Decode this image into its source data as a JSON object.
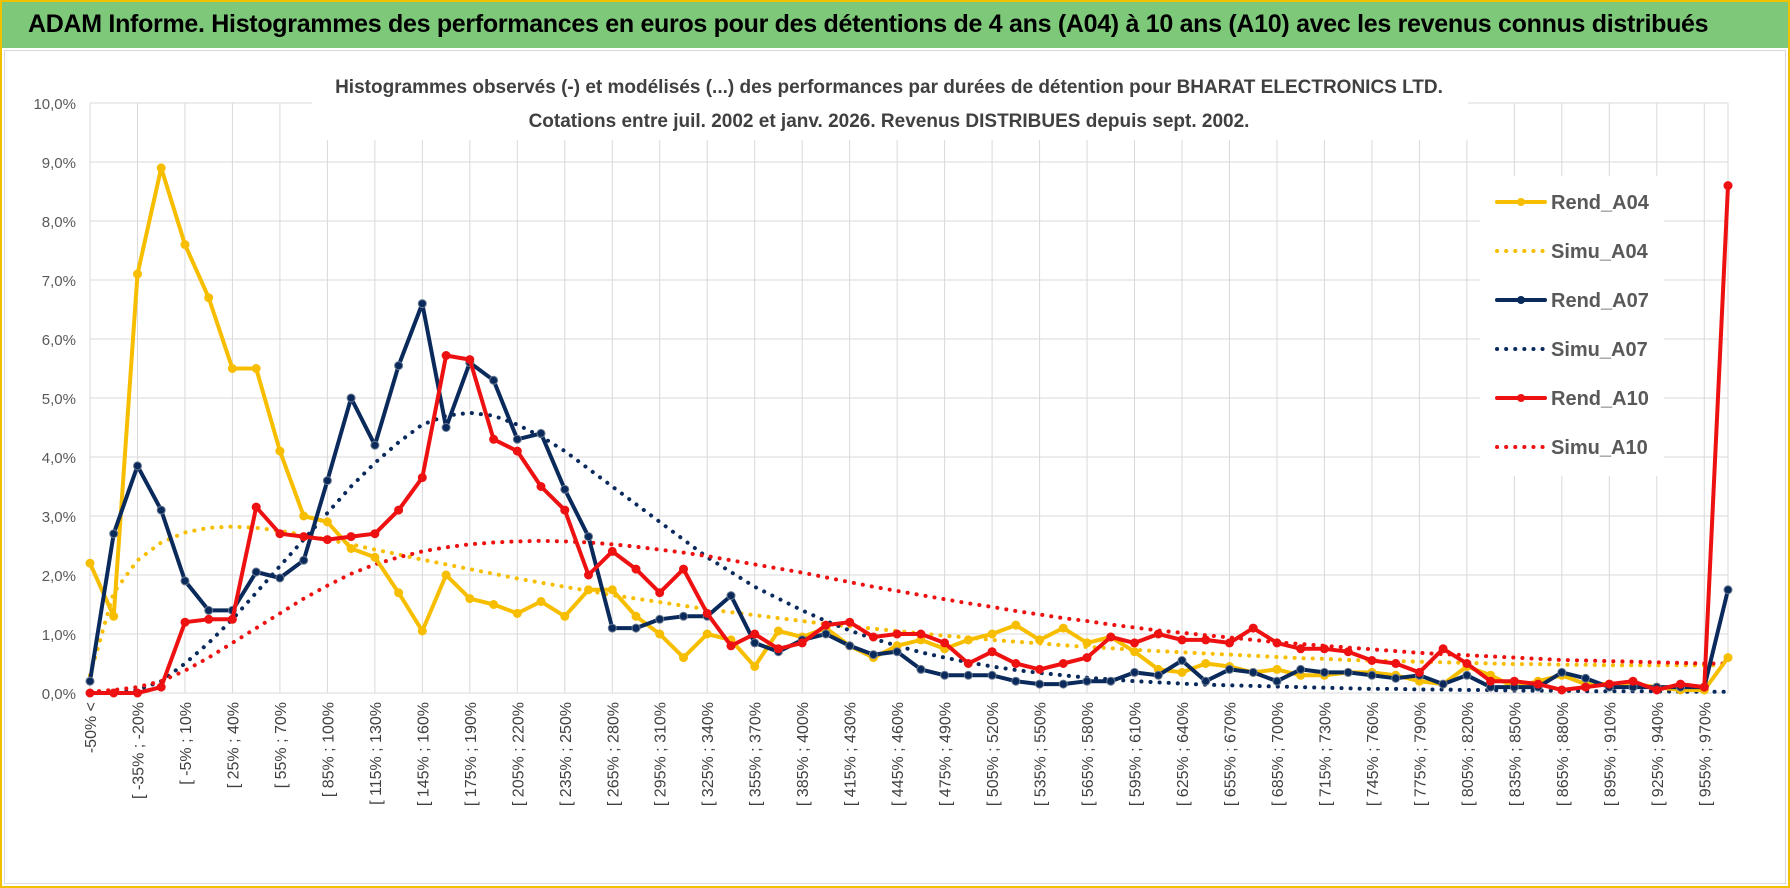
{
  "header": {
    "title": "ADAM Informe. Histogrammes des performances en euros pour des détentions de 4 ans (A04) à 10 ans (A10) avec les revenus connus distribués"
  },
  "chart_data": {
    "type": "line",
    "title": "Histogrammes observés (-) et modélisés (...) des performances par durées de détention pour BHARAT ELECTRONICS LTD.",
    "subtitle": "Cotations entre juil. 2002 et janv. 2026. Revenus DISTRIBUES depuis sept. 2002.",
    "xlabel": "",
    "ylabel": "",
    "ylim": [
      0,
      10
    ],
    "y_ticks": [
      "0,0%",
      "1,0%",
      "2,0%",
      "3,0%",
      "4,0%",
      "5,0%",
      "6,0%",
      "7,0%",
      "8,0%",
      "9,0%",
      "10,0%"
    ],
    "grid": true,
    "legend_position": "right",
    "x_tick_labels": [
      "-50% <",
      "[ -35% ; -20%",
      "[ -5% ; 10%",
      "[ 25% ; 40%",
      "[ 55% ; 70%",
      "[ 85% ; 100%",
      "[ 115% ; 130%",
      "[ 145% ; 160%",
      "[ 175% ; 190%",
      "[ 205% ; 220%",
      "[ 235% ; 250%",
      "[ 265% ; 280%",
      "[ 295% ; 310%",
      "[ 325% ; 340%",
      "[ 355% ; 370%",
      "[ 385% ; 400%",
      "[ 415% ; 430%",
      "[ 445% ; 460%",
      "[ 475% ; 490%",
      "[ 505% ; 520%",
      "[ 535% ; 550%",
      "[ 565% ; 580%",
      "[ 595% ; 610%",
      "[ 625% ; 640%",
      "[ 655% ; 670%",
      "[ 685% ; 700%",
      "[ 715% ; 730%",
      "[ 745% ; 760%",
      "[ 775% ; 790%",
      "[ 805% ; 820%",
      "[ 835% ; 850%",
      "[ 865% ; 880%",
      "[ 895% ; 910%",
      "[ 925% ; 940%",
      "[ 955% ; 970%"
    ],
    "series": [
      {
        "name": "Rend_A04",
        "style": "solid",
        "markers": true,
        "color": "#f7be00",
        "values": [
          2.2,
          1.3,
          7.1,
          8.9,
          7.6,
          6.7,
          5.5,
          5.5,
          4.1,
          3.0,
          2.9,
          2.45,
          2.3,
          1.7,
          1.05,
          2.0,
          1.6,
          1.5,
          1.35,
          1.55,
          1.3,
          1.75,
          1.75,
          1.3,
          1.0,
          0.6,
          1.0,
          0.9,
          0.45,
          1.05,
          0.95,
          1.1,
          0.8,
          0.6,
          0.8,
          0.9,
          0.75,
          0.9,
          1.0,
          1.15,
          0.9,
          1.1,
          0.85,
          0.95,
          0.7,
          0.4,
          0.35,
          0.5,
          0.45,
          0.35,
          0.4,
          0.3,
          0.3,
          0.35,
          0.35,
          0.3,
          0.2,
          0.15,
          0.45,
          0.3,
          0.1,
          0.2,
          0.3,
          0.15,
          0.15,
          0.15,
          0.1,
          0.05,
          0.05,
          0.6
        ]
      },
      {
        "name": "Simu_A04",
        "style": "dotted",
        "markers": false,
        "color": "#f7be00",
        "values": [
          0.3,
          1.7,
          2.25,
          2.55,
          2.72,
          2.8,
          2.82,
          2.8,
          2.75,
          2.68,
          2.6,
          2.52,
          2.43,
          2.35,
          2.26,
          2.18,
          2.1,
          2.02,
          1.94,
          1.87,
          1.8,
          1.73,
          1.66,
          1.6,
          1.54,
          1.48,
          1.42,
          1.37,
          1.32,
          1.27,
          1.22,
          1.17,
          1.13,
          1.09,
          1.05,
          1.01,
          0.97,
          0.94,
          0.9,
          0.87,
          0.84,
          0.81,
          0.78,
          0.76,
          0.73,
          0.71,
          0.69,
          0.67,
          0.65,
          0.63,
          0.61,
          0.59,
          0.58,
          0.56,
          0.55,
          0.54,
          0.53,
          0.52,
          0.51,
          0.5,
          0.49,
          0.49,
          0.48,
          0.48,
          0.47,
          0.47,
          0.47,
          0.47,
          0.47,
          0.47
        ]
      },
      {
        "name": "Rend_A07",
        "style": "solid",
        "markers": true,
        "color": "#0b2a5c",
        "values": [
          0.2,
          2.7,
          3.85,
          3.1,
          1.9,
          1.4,
          1.4,
          2.05,
          1.95,
          2.25,
          3.6,
          5.0,
          4.2,
          5.55,
          6.6,
          4.5,
          5.6,
          5.3,
          4.3,
          4.4,
          3.45,
          2.65,
          1.1,
          1.1,
          1.25,
          1.3,
          1.3,
          1.65,
          0.85,
          0.7,
          0.9,
          1.0,
          0.8,
          0.65,
          0.7,
          0.4,
          0.3,
          0.3,
          0.3,
          0.2,
          0.15,
          0.15,
          0.2,
          0.2,
          0.35,
          0.3,
          0.55,
          0.2,
          0.4,
          0.35,
          0.2,
          0.4,
          0.35,
          0.35,
          0.3,
          0.25,
          0.3,
          0.15,
          0.3,
          0.1,
          0.1,
          0.1,
          0.35,
          0.25,
          0.1,
          0.1,
          0.1,
          0.1,
          0.1,
          1.75
        ]
      },
      {
        "name": "Simu_A07",
        "style": "dotted",
        "markers": false,
        "color": "#0b2a5c",
        "values": [
          0,
          0,
          0.05,
          0.2,
          0.5,
          0.85,
          1.25,
          1.7,
          2.15,
          2.6,
          3.05,
          3.5,
          3.9,
          4.25,
          4.55,
          4.7,
          4.75,
          4.7,
          4.55,
          4.35,
          4.1,
          3.8,
          3.5,
          3.2,
          2.9,
          2.6,
          2.3,
          2.05,
          1.8,
          1.6,
          1.4,
          1.22,
          1.06,
          0.92,
          0.8,
          0.69,
          0.6,
          0.52,
          0.45,
          0.39,
          0.34,
          0.3,
          0.26,
          0.23,
          0.2,
          0.18,
          0.16,
          0.14,
          0.13,
          0.12,
          0.11,
          0.1,
          0.09,
          0.08,
          0.07,
          0.07,
          0.06,
          0.06,
          0.05,
          0.05,
          0.04,
          0.04,
          0.04,
          0.03,
          0.03,
          0.03,
          0.03,
          0.02,
          0.02,
          0.02
        ]
      },
      {
        "name": "Rend_A10",
        "style": "solid",
        "markers": true,
        "color": "#ee1111",
        "values": [
          0,
          0,
          0,
          0.1,
          1.2,
          1.25,
          1.25,
          3.15,
          2.7,
          2.65,
          2.6,
          2.65,
          2.7,
          3.1,
          3.65,
          5.72,
          5.65,
          4.3,
          4.1,
          3.5,
          3.1,
          2.0,
          2.4,
          2.1,
          1.7,
          2.1,
          1.35,
          0.8,
          1.0,
          0.75,
          0.85,
          1.15,
          1.2,
          0.95,
          1.0,
          1.0,
          0.85,
          0.5,
          0.7,
          0.5,
          0.4,
          0.5,
          0.6,
          0.95,
          0.85,
          1.0,
          0.9,
          0.9,
          0.85,
          1.1,
          0.85,
          0.75,
          0.75,
          0.7,
          0.55,
          0.5,
          0.35,
          0.75,
          0.5,
          0.2,
          0.2,
          0.15,
          0.05,
          0.1,
          0.15,
          0.2,
          0.05,
          0.15,
          0.1,
          8.6
        ]
      },
      {
        "name": "Simu_A10",
        "style": "dotted",
        "markers": false,
        "color": "#ee1111",
        "values": [
          0.02,
          0.05,
          0.1,
          0.2,
          0.38,
          0.6,
          0.85,
          1.1,
          1.35,
          1.6,
          1.82,
          2.02,
          2.18,
          2.3,
          2.4,
          2.47,
          2.52,
          2.55,
          2.57,
          2.58,
          2.57,
          2.55,
          2.52,
          2.48,
          2.43,
          2.38,
          2.32,
          2.25,
          2.18,
          2.11,
          2.04,
          1.96,
          1.88,
          1.8,
          1.73,
          1.66,
          1.59,
          1.52,
          1.46,
          1.39,
          1.33,
          1.27,
          1.22,
          1.16,
          1.11,
          1.06,
          1.02,
          0.98,
          0.94,
          0.9,
          0.86,
          0.83,
          0.8,
          0.77,
          0.74,
          0.71,
          0.68,
          0.66,
          0.64,
          0.62,
          0.6,
          0.58,
          0.56,
          0.55,
          0.54,
          0.53,
          0.52,
          0.51,
          0.5,
          0.5
        ]
      }
    ]
  }
}
